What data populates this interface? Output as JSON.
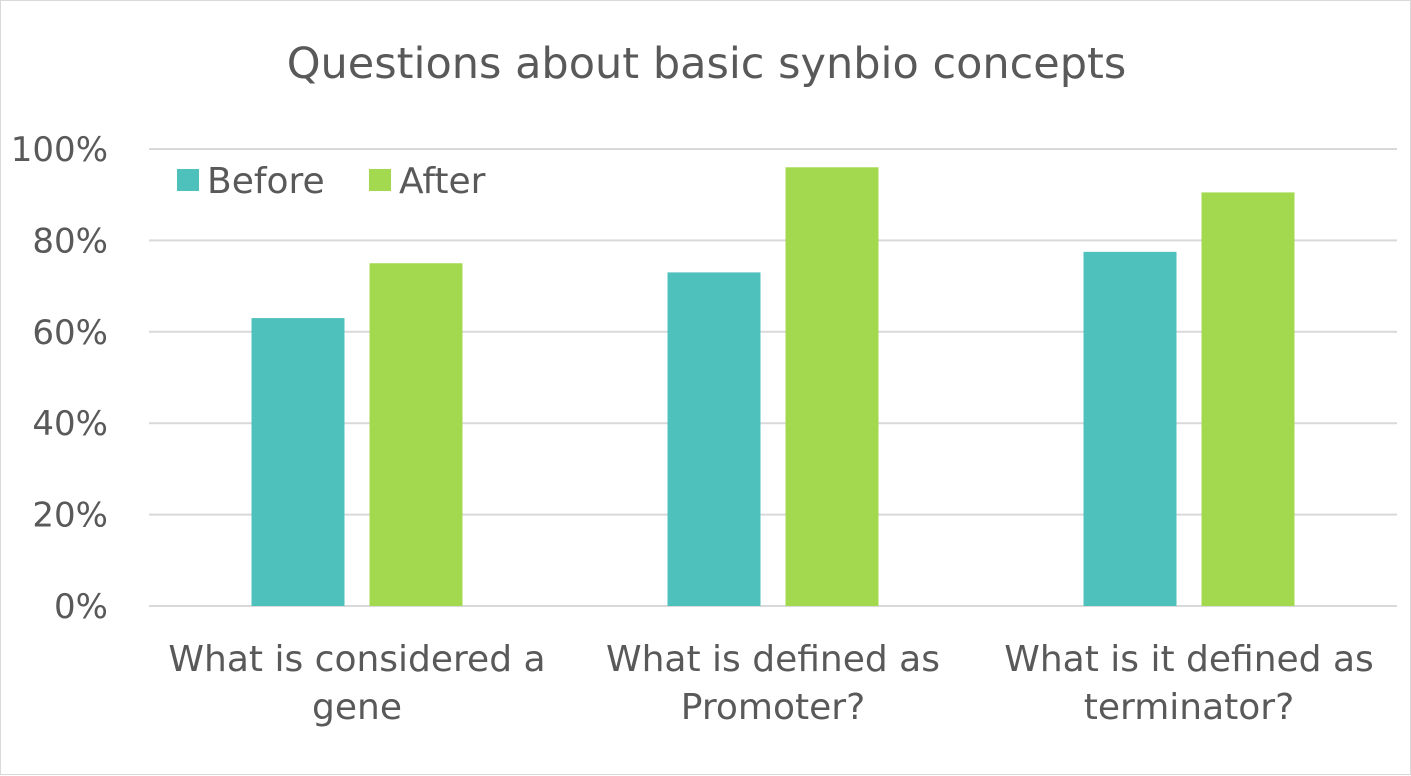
{
  "chart_data": {
    "type": "bar",
    "title": "Questions about basic synbio concepts",
    "categories": [
      [
        "What is considered a",
        "gene"
      ],
      [
        "What is defined as",
        "Promoter?"
      ],
      [
        "What is it defined as",
        "terminator?"
      ]
    ],
    "series": [
      {
        "name": "Before",
        "color": "#4fc1bd",
        "values": [
          63,
          73,
          77.5
        ]
      },
      {
        "name": "After",
        "color": "#a3d94e",
        "values": [
          75,
          96,
          90.5
        ]
      }
    ],
    "y_ticks": [
      "0%",
      "20%",
      "40%",
      "60%",
      "80%",
      "100%"
    ],
    "ylim": [
      0,
      100
    ],
    "grid": true,
    "legend_position": "top-left",
    "gridline_color": "#d9d9d9",
    "text_color": "#595959"
  }
}
